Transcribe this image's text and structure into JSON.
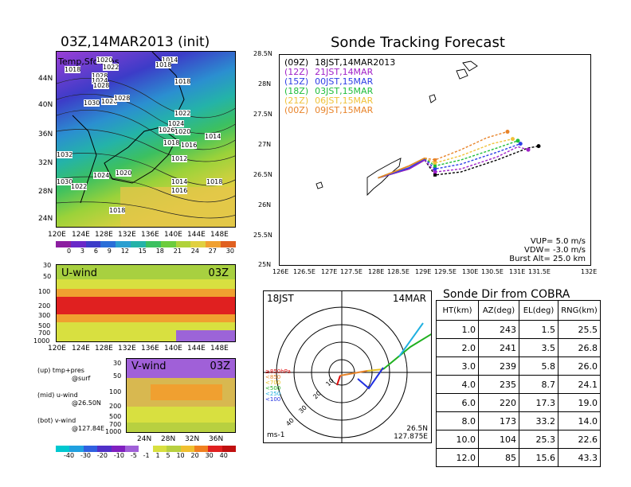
{
  "left": {
    "title": "03Z,14MAR2013 (init)",
    "map_overlay_label": "Temp,Sfc Pres",
    "lat_labels": [
      "44N",
      "40N",
      "36N",
      "32N",
      "28N",
      "24N"
    ],
    "lon_labels": [
      "120E",
      "124E",
      "128E",
      "132E",
      "136E",
      "140E",
      "144E",
      "148E"
    ],
    "pressure_labels": [
      "1018",
      "1020",
      "1022",
      "1028",
      "1024",
      "1028",
      "1030",
      "1026",
      "1028",
      "1014",
      "1018",
      "1018",
      "1022",
      "1024",
      "1026",
      "1020",
      "1016",
      "1018",
      "1012",
      "1014",
      "1032",
      "1024",
      "1020",
      "1030",
      "1022",
      "1014",
      "1016",
      "1018",
      "1018"
    ],
    "colorbar_temp": [
      "0",
      "3",
      "6",
      "9",
      "12",
      "15",
      "18",
      "21",
      "24",
      "27",
      "30"
    ],
    "uwind_label": "U-wind",
    "uwind_time": "03Z",
    "p_ticks": [
      "30",
      "50",
      "100",
      "200",
      "300",
      "500",
      "700",
      "1000"
    ],
    "vwind_label": "V-wind",
    "vwind_time": "03Z",
    "vwind_x": [
      "24N",
      "28N",
      "32N",
      "36N"
    ],
    "colorbar_wind": [
      "-40",
      "-30",
      "-20",
      "-10",
      "-5",
      "-1",
      "1",
      "5",
      "10",
      "20",
      "30",
      "40"
    ],
    "legend": [
      {
        "l1": "(up) tmp+pres",
        "l2": "@surf"
      },
      {
        "l1": "(mid) u-wind",
        "l2": "@26.50N"
      },
      {
        "l1": "(bot) v-wind",
        "l2": "@127.84E"
      }
    ]
  },
  "track": {
    "title": "Sonde Tracking Forecast",
    "lat_labels": [
      "28.5N",
      "28N",
      "27.5N",
      "27N",
      "26.5N",
      "26N",
      "25.5N",
      "25N"
    ],
    "lon_labels": [
      "126E",
      "126.5E",
      "127E",
      "127.5E",
      "128E",
      "128.5E",
      "129E",
      "129.5E",
      "130E",
      "130.5E",
      "131E",
      "131.5E",
      "132E"
    ],
    "legend": [
      {
        "code": "(09Z)",
        "time": "18JST,14MAR2013",
        "color": "#000000"
      },
      {
        "code": "(12Z)",
        "time": "21JST,14MAR",
        "color": "#a020c8"
      },
      {
        "code": "(15Z)",
        "time": "00JST,15MAR",
        "color": "#2e3ee6"
      },
      {
        "code": "(18Z)",
        "time": "03JST,15MAR",
        "color": "#1fbe3a"
      },
      {
        "code": "(21Z)",
        "time": "06JST,15MAR",
        "color": "#f0c23a"
      },
      {
        "code": "(00Z)",
        "time": "09JST,15MAR",
        "color": "#e8842a"
      }
    ],
    "params": [
      "VUP=  5.0  m/s",
      "VDW= -3.0  m/s",
      "Burst Alt=  25.0  km"
    ]
  },
  "polar": {
    "time": "18JST",
    "date": "14MAR",
    "ring_labels": [
      "10",
      "20",
      "30",
      "40"
    ],
    "pressure_legend": [
      {
        "label": "≥850hPa",
        "color": "#e01010"
      },
      {
        "label": "<850",
        "color": "#e8842a"
      },
      {
        "label": "<700",
        "color": "#e8c020"
      },
      {
        "label": "<500",
        "color": "#20b020"
      },
      {
        "label": "<250",
        "color": "#20b0e0"
      },
      {
        "label": "<100",
        "color": "#2030e0"
      }
    ],
    "units": "ms-1",
    "loc1": "26.5N",
    "loc2": "127.875E"
  },
  "table": {
    "title": "Sonde Dir from COBRA",
    "headers": [
      "HT(km)",
      "AZ(deg)",
      "EL(deg)",
      "RNG(km)"
    ],
    "rows": [
      [
        "1.0",
        "243",
        "1.5",
        "25.5"
      ],
      [
        "2.0",
        "241",
        "3.5",
        "26.8"
      ],
      [
        "3.0",
        "239",
        "5.8",
        "26.0"
      ],
      [
        "4.0",
        "235",
        "8.7",
        "24.1"
      ],
      [
        "6.0",
        "220",
        "17.3",
        "19.0"
      ],
      [
        "8.0",
        "173",
        "33.2",
        "14.0"
      ],
      [
        "10.0",
        "104",
        "25.3",
        "22.6"
      ],
      [
        "12.0",
        "85",
        "15.6",
        "43.3"
      ]
    ]
  },
  "chart_data": [
    {
      "type": "line",
      "title": "Sonde Tracking Forecast",
      "xlabel": "",
      "ylabel": "",
      "xlim": [
        126,
        132
      ],
      "ylim": [
        25,
        28.5
      ],
      "series": [
        {
          "name": "(09Z) 18JST,14MAR2013",
          "x": [
            127.9,
            128.5,
            128.8,
            129.0,
            129.5,
            130.2,
            130.8,
            131.0
          ],
          "y": [
            26.45,
            26.6,
            26.75,
            26.5,
            26.55,
            26.75,
            26.95,
            26.98
          ]
        },
        {
          "name": "(12Z) 21JST,14MAR",
          "x": [
            127.9,
            128.5,
            128.8,
            129.0,
            129.5,
            130.2,
            130.6,
            130.8
          ],
          "y": [
            26.45,
            26.6,
            26.75,
            26.55,
            26.6,
            26.8,
            26.97,
            26.92
          ]
        },
        {
          "name": "(15Z) 00JST,15MAR",
          "x": [
            127.9,
            128.5,
            128.8,
            129.0,
            129.5,
            130.2,
            130.65
          ],
          "y": [
            26.45,
            26.62,
            26.77,
            26.6,
            26.68,
            26.88,
            27.02
          ]
        },
        {
          "name": "(18Z) 03JST,15MAR",
          "x": [
            127.9,
            128.5,
            128.8,
            129.0,
            129.5,
            130.2,
            130.6
          ],
          "y": [
            26.45,
            26.65,
            26.78,
            26.65,
            26.75,
            26.95,
            27.07
          ]
        },
        {
          "name": "(21Z) 06JST,15MAR",
          "x": [
            127.9,
            128.5,
            128.8,
            129.0,
            129.5,
            130.1,
            130.5
          ],
          "y": [
            26.45,
            26.65,
            26.78,
            26.7,
            26.82,
            27.02,
            27.1
          ]
        },
        {
          "name": "(00Z) 09JST,15MAR",
          "x": [
            127.9,
            128.5,
            128.8,
            129.0,
            129.5,
            130.0,
            130.4
          ],
          "y": [
            26.45,
            26.65,
            26.78,
            26.75,
            26.92,
            27.12,
            27.22
          ]
        }
      ]
    }
  ]
}
